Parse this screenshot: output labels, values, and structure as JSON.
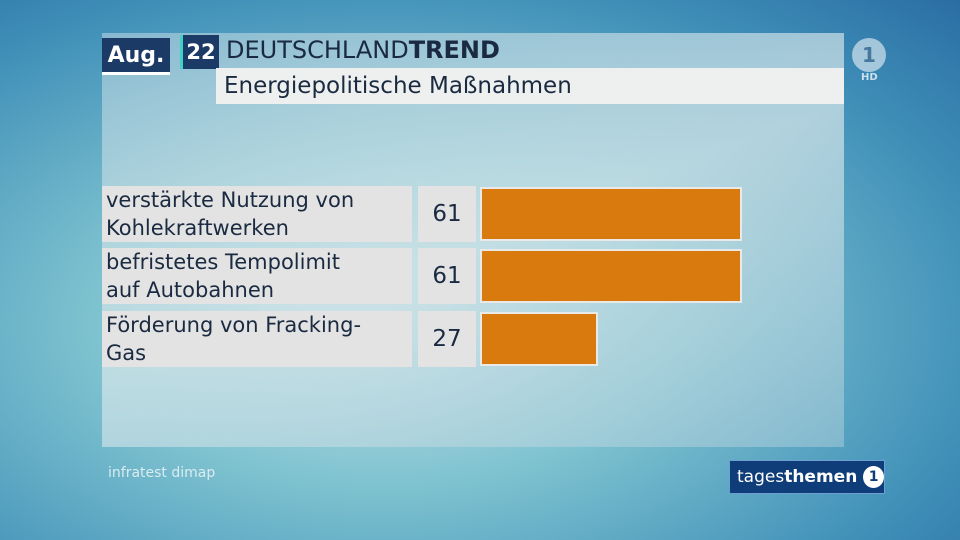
{
  "header": {
    "month": "Aug.",
    "day": "22",
    "title_regular": "DEUTSCHLAND",
    "title_bold": "TREND",
    "subtitle": "Energiepolitische Maßnahmen"
  },
  "broadcaster": {
    "channel_logo_text": "1",
    "hd_label": "HD",
    "show_regular": "tages",
    "show_bold": "themen",
    "show_logo_text": "1"
  },
  "source": "infratest dimap",
  "colors": {
    "bar": "#d87a0e",
    "header_box": "#1b3a66",
    "accent": "#3fd0c8"
  },
  "chart_data": {
    "type": "bar",
    "orientation": "horizontal",
    "title": "Energiepolitische Maßnahmen",
    "categories": [
      "verstärkte Nutzung von\nKohlekraftwerken",
      "befristetes Tempolimit\nauf Autobahnen",
      "Förderung von Fracking-\nGas"
    ],
    "values": [
      61,
      61,
      27
    ],
    "value_labels": [
      "61",
      "61",
      "27"
    ],
    "xlim": [
      0,
      100
    ]
  }
}
